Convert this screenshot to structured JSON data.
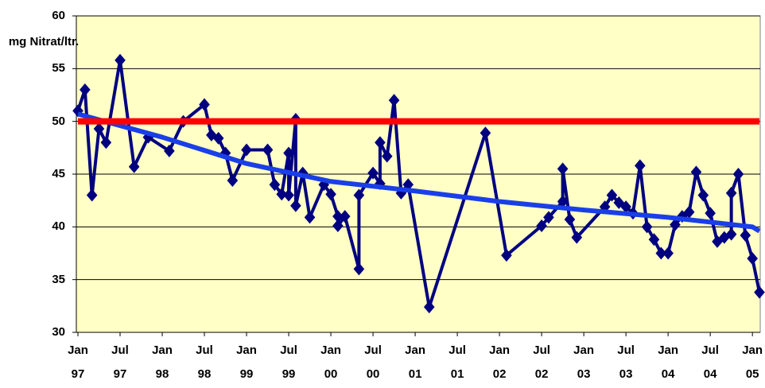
{
  "chart_data": {
    "type": "line",
    "ylabel": "mg Nitrat/ltr.",
    "xlim": [
      "1997-01",
      "2005-02"
    ],
    "xticks": [
      {
        "value": "1997-01",
        "label": "Jan 97"
      },
      {
        "value": "1997-07",
        "label": "Jul 97"
      },
      {
        "value": "1998-01",
        "label": "Jan 98"
      },
      {
        "value": "1998-07",
        "label": "Jul 98"
      },
      {
        "value": "1999-01",
        "label": "Jan 99"
      },
      {
        "value": "1999-07",
        "label": "Jul 99"
      },
      {
        "value": "2000-01",
        "label": "Jan 00"
      },
      {
        "value": "2000-07",
        "label": "Jul 00"
      },
      {
        "value": "2001-01",
        "label": "Jan 01"
      },
      {
        "value": "2001-07",
        "label": "Jul 01"
      },
      {
        "value": "2002-01",
        "label": "Jan 02"
      },
      {
        "value": "2002-07",
        "label": "Jul 02"
      },
      {
        "value": "2003-01",
        "label": "Jan 03"
      },
      {
        "value": "2003-07",
        "label": "Jul 03"
      },
      {
        "value": "2004-01",
        "label": "Jan 04"
      },
      {
        "value": "2004-07",
        "label": "Jul 04"
      },
      {
        "value": "2005-01",
        "label": "Jan 05"
      }
    ],
    "ylim": [
      30,
      60
    ],
    "yticks": [
      30,
      35,
      40,
      45,
      50,
      55,
      60
    ],
    "grid": true,
    "background": "#ffffc6",
    "series": [
      {
        "color": "#000080",
        "markers": true,
        "width": 4,
        "x": [
          "1997-01",
          "1997-02",
          "1997-03",
          "1997-04",
          "1997-05",
          "1997-07",
          "1997-09",
          "1997-11",
          "1998-02",
          "1998-04",
          "1998-07",
          "1998-08",
          "1998-09",
          "1998-10",
          "1998-11",
          "1999-01",
          "1999-04",
          "1999-05",
          "1999-06",
          "1999-07",
          "1999-07",
          "1999-08",
          "1999-08",
          "1999-09",
          "1999-10",
          "1999-12",
          "2000-01",
          "2000-02",
          "2000-02",
          "2000-03",
          "2000-05",
          "2000-05",
          "2000-07",
          "2000-08",
          "2000-08",
          "2000-09",
          "2000-10",
          "2000-11",
          "2000-12",
          "2001-03",
          "2001-11",
          "2002-02",
          "2002-07",
          "2002-08",
          "2002-10",
          "2002-10",
          "2002-11",
          "2002-12",
          "2003-04",
          "2003-05",
          "2003-06",
          "2003-07",
          "2003-08",
          "2003-09",
          "2003-10",
          "2003-11",
          "2003-12",
          "2004-01",
          "2004-02",
          "2004-03",
          "2004-04",
          "2004-05",
          "2004-06",
          "2004-07",
          "2004-08",
          "2004-09",
          "2004-10",
          "2004-10",
          "2004-11",
          "2004-12",
          "2005-01",
          "2005-02"
        ],
        "values": [
          51.0,
          53.0,
          43.0,
          49.3,
          48.0,
          55.8,
          45.7,
          48.5,
          47.2,
          50.0,
          51.6,
          48.7,
          48.4,
          47.0,
          44.4,
          47.3,
          47.3,
          44.0,
          43.1,
          47.0,
          43.0,
          50.2,
          42.0,
          45.1,
          40.9,
          44.0,
          43.1,
          41.0,
          40.1,
          41.0,
          36.0,
          43.0,
          45.1,
          44.1,
          48.0,
          46.7,
          52.0,
          43.2,
          44.0,
          32.4,
          48.9,
          37.3,
          40.1,
          40.9,
          42.4,
          45.5,
          40.7,
          39.0,
          41.9,
          43.0,
          42.3,
          41.9,
          41.3,
          45.8,
          40.0,
          38.8,
          37.5,
          37.5,
          40.2,
          41.0,
          41.4,
          45.2,
          43.0,
          41.3,
          38.6,
          39.0,
          39.3,
          43.2,
          45.0,
          39.2,
          37.0,
          33.8
        ]
      },
      {
        "color": "#1a3fe8",
        "markers": false,
        "width": 6,
        "x": [
          "1997-01",
          "1998-01",
          "1999-01",
          "2000-01",
          "2001-01",
          "2002-01",
          "2003-01",
          "2004-01",
          "2005-01",
          "2005-02"
        ],
        "values": [
          50.7,
          48.5,
          46.0,
          44.3,
          43.4,
          42.4,
          41.6,
          40.9,
          40.0,
          39.6
        ]
      },
      {
        "color": "#ff0000",
        "markers": false,
        "width": 8,
        "x": [
          "1997-01",
          "2005-02"
        ],
        "values": [
          50,
          50
        ]
      }
    ]
  }
}
